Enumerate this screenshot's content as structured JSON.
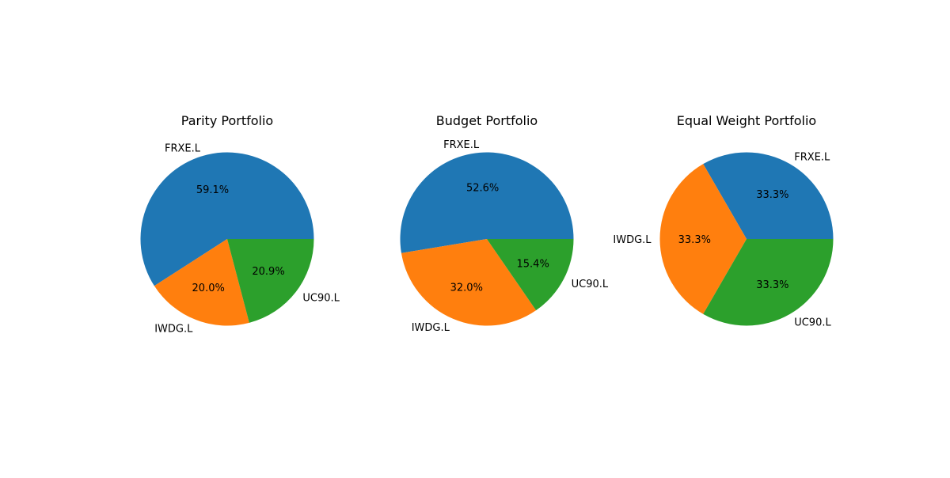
{
  "colors": {
    "slice_1": "#1f77b4",
    "slice_2": "#ff7f0e",
    "slice_3": "#2ca02c",
    "text": "#000000",
    "background": "#ffffff"
  },
  "chart_data": [
    {
      "type": "pie",
      "title": "Parity Portfolio",
      "labels": [
        "FRXE.L",
        "IWDG.L",
        "UC90.L"
      ],
      "values": [
        59.1,
        20.0,
        20.9
      ],
      "value_labels": [
        "59.1%",
        "20.0%",
        "20.9%"
      ],
      "start_angle_deg": 0,
      "direction": "counterclockwise"
    },
    {
      "type": "pie",
      "title": "Budget Portfolio",
      "labels": [
        "FRXE.L",
        "IWDG.L",
        "UC90.L"
      ],
      "values": [
        52.6,
        32.0,
        15.4
      ],
      "value_labels": [
        "52.6%",
        "32.0%",
        "15.4%"
      ],
      "start_angle_deg": 0,
      "direction": "counterclockwise"
    },
    {
      "type": "pie",
      "title": "Equal Weight Portfolio",
      "labels": [
        "FRXE.L",
        "IWDG.L",
        "UC90.L"
      ],
      "values": [
        33.3,
        33.3,
        33.3
      ],
      "value_labels": [
        "33.3%",
        "33.3%",
        "33.3%"
      ],
      "start_angle_deg": 0,
      "direction": "counterclockwise"
    }
  ]
}
